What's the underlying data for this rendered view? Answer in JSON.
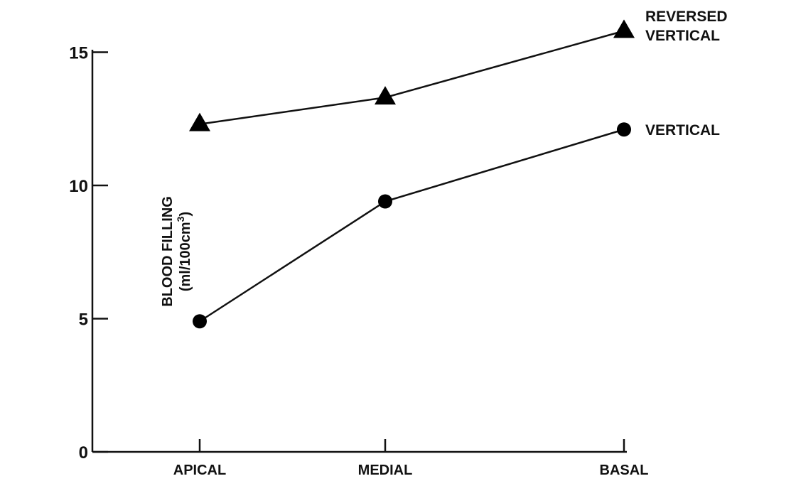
{
  "chart_data": {
    "type": "line",
    "categories": [
      "APICAL",
      "MEDIAL",
      "BASAL"
    ],
    "ylabel_line1": "BLOOD FILLING",
    "ylabel_line2_prefix": "(ml/100cm",
    "ylabel_line2_sup": "3",
    "ylabel_line2_suffix": ")",
    "ylim": [
      0,
      15
    ],
    "yticks": [
      0,
      5,
      10,
      15
    ],
    "grid": false,
    "series": [
      {
        "name": "REVERSED VERTICAL",
        "label_line1": "REVERSED",
        "label_line2": "VERTICAL",
        "marker": "triangle",
        "values": [
          12.3,
          13.3,
          15.8
        ]
      },
      {
        "name": "VERTICAL",
        "label_line1": "VERTICAL",
        "marker": "circle",
        "values": [
          4.9,
          9.4,
          12.1
        ]
      }
    ],
    "colors": {
      "line": "#111111",
      "marker": "#000000"
    }
  }
}
